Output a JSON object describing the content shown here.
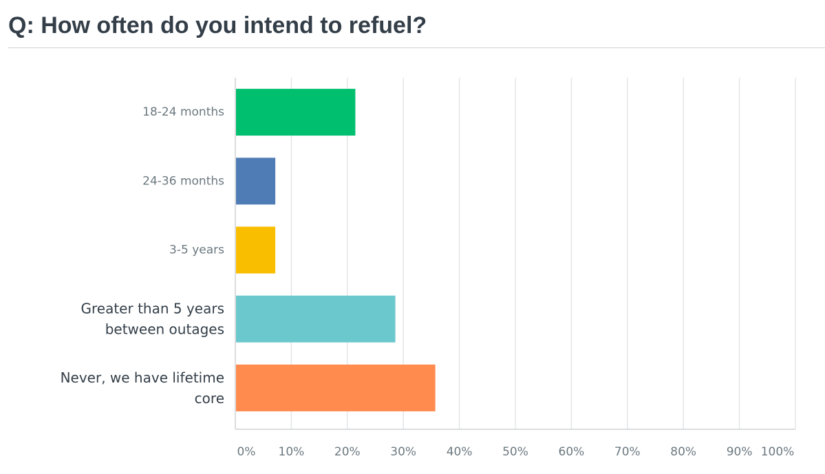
{
  "title": "Q: How often do you intend to refuel?",
  "chart_data": {
    "type": "bar",
    "orientation": "horizontal",
    "categories": [
      [
        "18-24 months"
      ],
      [
        "24-36 months"
      ],
      [
        "3-5 years"
      ],
      [
        "Greater than 5 years",
        "between outages"
      ],
      [
        "Never, we have lifetime",
        "core"
      ]
    ],
    "values": [
      21.43,
      7.14,
      7.14,
      28.57,
      35.71
    ],
    "colors": [
      "#00bf6f",
      "#507cb6",
      "#f9be00",
      "#6bc8cd",
      "#ff8b4f"
    ],
    "xlim": [
      0,
      100
    ],
    "xticks": [
      "0%",
      "10%",
      "20%",
      "30%",
      "40%",
      "50%",
      "60%",
      "70%",
      "80%",
      "90%",
      "100%"
    ],
    "grid": true,
    "xlabel": "",
    "ylabel": ""
  }
}
